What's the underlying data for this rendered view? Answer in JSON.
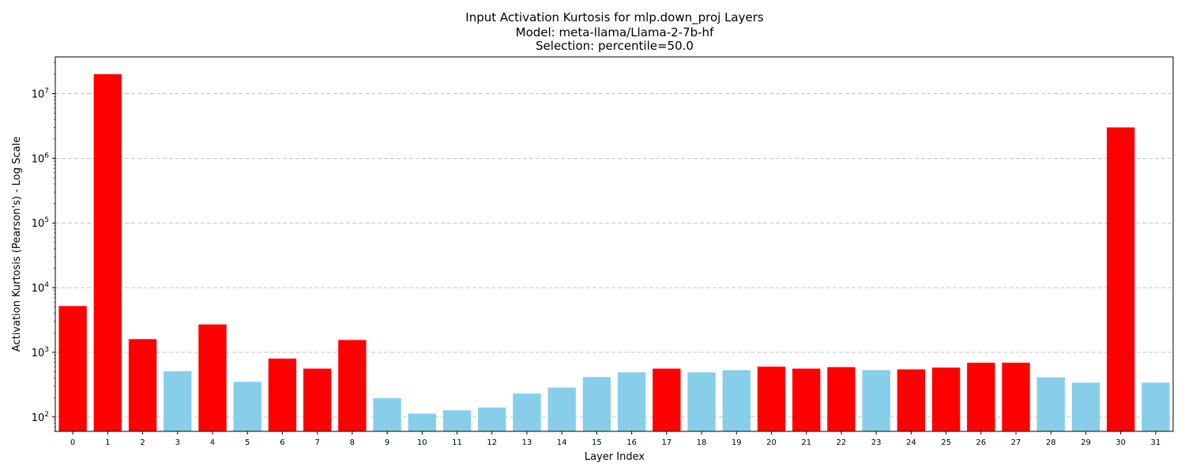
{
  "chart_data": {
    "type": "bar",
    "title_lines": [
      "Input Activation Kurtosis for mlp.down_proj Layers",
      "Model: meta-llama/Llama-2-7b-hf",
      "Selection: percentile=50.0"
    ],
    "xlabel": "Layer Index",
    "ylabel": "Activation Kurtosis (Pearson's) - Log Scale",
    "yscale": "log",
    "ylim": [
      60,
      37000000
    ],
    "yticks": [
      {
        "value": 100,
        "base": "10",
        "exp": "2"
      },
      {
        "value": 1000,
        "base": "10",
        "exp": "3"
      },
      {
        "value": 10000,
        "base": "10",
        "exp": "4"
      },
      {
        "value": 100000,
        "base": "10",
        "exp": "5"
      },
      {
        "value": 1000000,
        "base": "10",
        "exp": "6"
      },
      {
        "value": 10000000,
        "base": "10",
        "exp": "7"
      }
    ],
    "grid": "y-dashed",
    "colors": {
      "selected": "#ff0000",
      "unselected": "#87ceeb"
    },
    "categories": [
      "0",
      "1",
      "2",
      "3",
      "4",
      "5",
      "6",
      "7",
      "8",
      "9",
      "10",
      "11",
      "12",
      "13",
      "14",
      "15",
      "16",
      "17",
      "18",
      "19",
      "20",
      "21",
      "22",
      "23",
      "24",
      "25",
      "26",
      "27",
      "28",
      "29",
      "30",
      "31"
    ],
    "values": [
      5200,
      20000000,
      1600,
      510,
      2700,
      350,
      800,
      560,
      1550,
      195,
      113,
      127,
      140,
      230,
      285,
      415,
      490,
      560,
      490,
      530,
      600,
      560,
      590,
      530,
      545,
      580,
      690,
      690,
      410,
      340,
      3000000,
      340
    ],
    "selected": [
      true,
      true,
      true,
      false,
      true,
      false,
      true,
      true,
      true,
      false,
      false,
      false,
      false,
      false,
      false,
      false,
      false,
      true,
      false,
      false,
      true,
      true,
      true,
      false,
      true,
      true,
      true,
      true,
      false,
      false,
      true,
      false
    ]
  }
}
